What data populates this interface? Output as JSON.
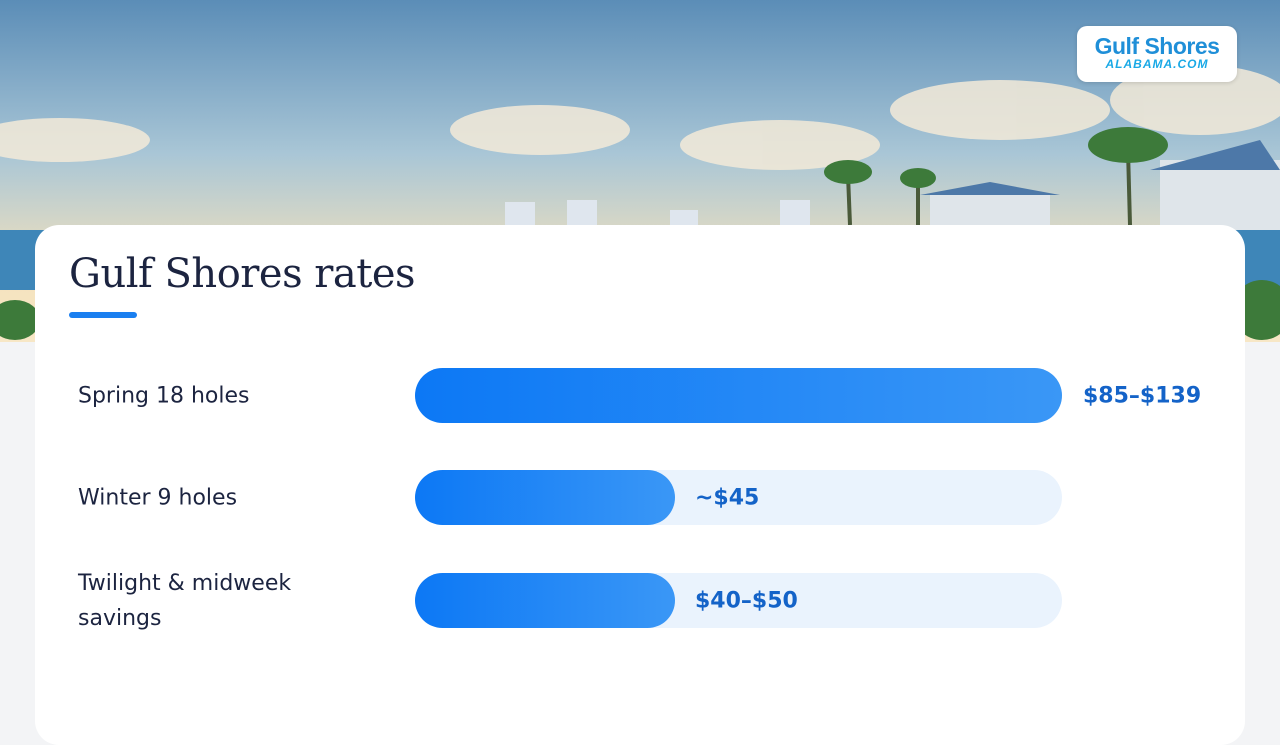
{
  "logo": {
    "name": "Gulf Shores",
    "domain": "ALABAMA.COM"
  },
  "title": "Gulf Shores rates",
  "rows": [
    {
      "label": "Spring 18 holes",
      "value": "$85–$139"
    },
    {
      "label": "Winter 9 holes",
      "value": "~$45"
    },
    {
      "label": "Twilight & midweek savings",
      "value": "$40–$50"
    }
  ]
}
